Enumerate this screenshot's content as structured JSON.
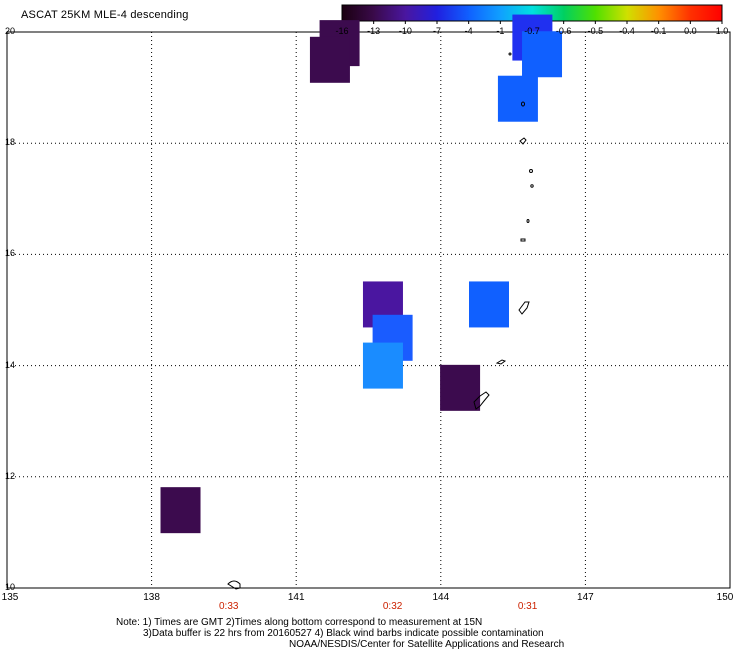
{
  "title": "ASCAT 25KM MLE-4 descending",
  "colorbar": {
    "labels": [
      "-16",
      "-13",
      "-10",
      "-7",
      "-4",
      "-1",
      "-0.7",
      "-0.6",
      "-0.5",
      "-0.4",
      "-0.1",
      "0.0",
      "1.0"
    ],
    "colors": [
      "#1a0010",
      "#3a0a4a",
      "#4a16a0",
      "#2020e0",
      "#1060ff",
      "#10a0ff",
      "#00e0e0",
      "#00d060",
      "#50e000",
      "#d0e000",
      "#ff9000",
      "#ff3000",
      "#ff0000"
    ]
  },
  "map": {
    "lon_range": [
      135,
      150
    ],
    "lat_range": [
      10,
      20
    ],
    "x_ticks": [
      "135",
      "138",
      "141",
      "144",
      "147",
      "150"
    ],
    "y_ticks": [
      "20",
      "18",
      "16",
      "14",
      "12",
      "10"
    ],
    "time_labels": [
      {
        "text": "0:33",
        "lon": 139.6
      },
      {
        "text": "0:32",
        "lon": 143.0
      },
      {
        "text": "0:31",
        "lon": 145.8
      }
    ],
    "cells": [
      {
        "lon": 141.9,
        "lat": 19.8,
        "color": "#3c0b4e"
      },
      {
        "lon": 141.7,
        "lat": 19.5,
        "color": "#3c0b4e"
      },
      {
        "lon": 145.9,
        "lat": 19.9,
        "color": "#2030f0"
      },
      {
        "lon": 146.1,
        "lat": 19.6,
        "color": "#1060ff"
      },
      {
        "lon": 145.6,
        "lat": 18.8,
        "color": "#1060ff"
      },
      {
        "lon": 142.8,
        "lat": 15.1,
        "color": "#4a16a0"
      },
      {
        "lon": 143.0,
        "lat": 14.5,
        "color": "#1a5cff"
      },
      {
        "lon": 142.8,
        "lat": 14.0,
        "color": "#1a8cff"
      },
      {
        "lon": 145.0,
        "lat": 15.1,
        "color": "#1060ff"
      },
      {
        "lon": 144.4,
        "lat": 13.6,
        "color": "#3c0b4e"
      },
      {
        "lon": 138.6,
        "lat": 11.4,
        "color": "#3c0b4e"
      }
    ]
  },
  "notes": {
    "line1": "Note: 1) Times are GMT 2)Times along bottom correspond to measurement at 15N",
    "line2": "3)Data buffer is 22 hrs from 20160527 4) Black wind barbs indicate possible contamination",
    "line3": "NOAA/NESDIS/Center for Satellite Applications and Research"
  }
}
